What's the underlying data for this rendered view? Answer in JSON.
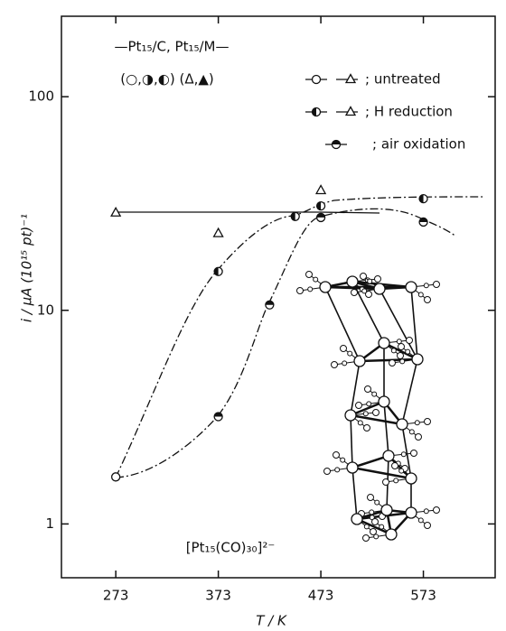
{
  "chart_data": {
    "type": "scatter",
    "x_label": "T / K",
    "y_label": "i / μA (10¹⁵ pt)⁻¹",
    "legend_header": "—Pt₁₅/C, Pt₁₅/M—",
    "legend_symbols": "(○,◑,◐)  (Δ,▲)",
    "annotation": "[Pt₁₅(CO)₃₀]²⁻",
    "log_y": true,
    "xlim": [
      220,
      643
    ],
    "ylim": [
      0.56,
      238
    ],
    "xticks": [
      273,
      373,
      473,
      573
    ],
    "yticks": [
      1,
      10,
      100
    ],
    "series": [
      {
        "name": "; untreated",
        "marker": "circle",
        "color": "#111",
        "x": [
          273
        ],
        "values": [
          1.66
        ]
      },
      {
        "name": "; H  reduction",
        "marker": "half-left",
        "color": "#111",
        "x": [
          373,
          448,
          473,
          573
        ],
        "values": [
          15.2,
          27.5,
          30.8,
          33.3
        ]
      },
      {
        "name": "; air oxidation",
        "marker": "half-top",
        "color": "#111",
        "x": [
          373,
          423,
          473,
          573
        ],
        "values": [
          3.18,
          10.6,
          27.2,
          25.9
        ]
      },
      {
        "marker": "triangle",
        "color": "#111",
        "x": [
          273,
          373,
          473
        ],
        "values": [
          28.6,
          22.9,
          36.4
        ]
      }
    ]
  }
}
